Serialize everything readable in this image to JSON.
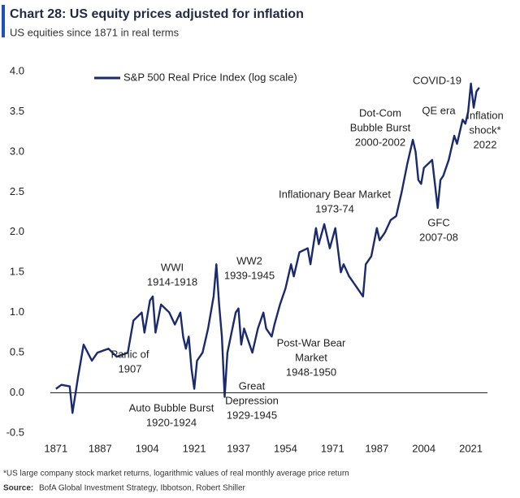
{
  "chart_data": {
    "type": "line",
    "title": "Chart 28: US equity prices adjusted for inflation",
    "subtitle": "US equities since 1871 in real terms",
    "footnote": "*US large company stock market returns, logarithmic values of real monthly average price return",
    "source_label": "Source:",
    "source": "BofA Global Investment Strategy, Ibbotson, Robert Shiller",
    "legend": "top-left",
    "xlim": [
      1869,
      2027
    ],
    "xticks": [
      1871,
      1887,
      1904,
      1921,
      1937,
      1954,
      1971,
      1987,
      2004,
      2021
    ],
    "ylim": [
      -0.5,
      4.0
    ],
    "yticks": [
      -0.5,
      {
        "value": 0,
        "label": "0.0"
      },
      0.5,
      {
        "value": 1,
        "label": "1.0"
      },
      1.5,
      {
        "value": 2,
        "label": "2.0"
      },
      2.5,
      {
        "value": 3,
        "label": "3.0"
      },
      3.5,
      {
        "value": 4,
        "label": "4.0"
      }
    ],
    "x": [
      1871,
      1873,
      1876,
      1877,
      1879,
      1881,
      1884,
      1886,
      1890,
      1893,
      1897,
      1899,
      1902,
      1903,
      1905,
      1906,
      1907,
      1909,
      1912,
      1914,
      1916,
      1917,
      1918,
      1919,
      1920,
      1921,
      1922,
      1924,
      1926,
      1928,
      1929,
      1930,
      1931,
      1932,
      1933,
      1936,
      1937,
      1938,
      1939,
      1941,
      1942,
      1944,
      1946,
      1947,
      1948,
      1949,
      1950,
      1952,
      1954,
      1956,
      1957,
      1959,
      1962,
      1963,
      1965,
      1966,
      1968,
      1970,
      1972,
      1974,
      1975,
      1977,
      1979,
      1982,
      1983,
      1985,
      1987,
      1988,
      1990,
      1992,
      1994,
      1996,
      1998,
      2000,
      2001,
      2002,
      2003,
      2004,
      2007,
      2008,
      2009,
      2010,
      2011,
      2013,
      2015,
      2016,
      2018,
      2019,
      2020,
      2021,
      2022,
      2023,
      2024
    ],
    "series": [
      {
        "name": "S&P 500 Real Price Index (log scale)",
        "color": "#1a2a6c",
        "values": [
          0.05,
          0.1,
          0.08,
          -0.25,
          0.2,
          0.6,
          0.4,
          0.5,
          0.55,
          0.45,
          0.5,
          0.9,
          1.0,
          0.75,
          1.15,
          1.2,
          0.75,
          1.1,
          1.0,
          0.85,
          1.0,
          0.7,
          0.55,
          0.7,
          0.3,
          0.05,
          0.4,
          0.5,
          0.8,
          1.2,
          1.6,
          1.1,
          0.7,
          -0.05,
          0.5,
          1.0,
          1.05,
          0.6,
          0.8,
          0.6,
          0.5,
          0.8,
          1.0,
          0.8,
          0.75,
          0.7,
          0.85,
          1.1,
          1.3,
          1.6,
          1.45,
          1.75,
          1.8,
          1.6,
          2.05,
          1.85,
          2.1,
          1.8,
          2.05,
          1.5,
          1.6,
          1.45,
          1.35,
          1.2,
          1.6,
          1.7,
          2.05,
          1.9,
          2.0,
          2.15,
          2.2,
          2.5,
          2.85,
          3.15,
          3.0,
          2.65,
          2.6,
          2.8,
          2.9,
          2.6,
          2.3,
          2.65,
          2.7,
          2.9,
          3.2,
          3.1,
          3.4,
          3.35,
          3.5,
          3.85,
          3.55,
          3.75,
          3.8
        ]
      }
    ],
    "annotations": [
      {
        "lines": [
          "Dot-Com",
          "Bubble Burst",
          "2000-2002"
        ]
      },
      {
        "lines": [
          "COVID-19"
        ]
      },
      {
        "lines": [
          "QE era"
        ]
      },
      {
        "lines": [
          "Inflation",
          "shock*",
          "2022"
        ]
      },
      {
        "lines": [
          "Inflationary Bear Market",
          "1973-74"
        ]
      },
      {
        "lines": [
          "GFC",
          "2007-08"
        ]
      },
      {
        "lines": [
          "WWI",
          "1914-1918"
        ]
      },
      {
        "lines": [
          "WW2",
          "1939-1945"
        ]
      },
      {
        "lines": [
          "Panic of",
          "1907"
        ]
      },
      {
        "lines": [
          "Post-War Bear",
          "Market",
          "1948-1950"
        ]
      },
      {
        "lines": [
          "Great",
          "Depression",
          "1929-1945"
        ]
      },
      {
        "lines": [
          "Auto Bubble Burst",
          "1920-1924"
        ]
      }
    ]
  }
}
